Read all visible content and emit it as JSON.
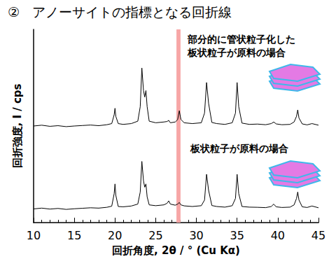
{
  "chart_data": {
    "type": "line",
    "title": "②   アノーサイトの指標となる回折線",
    "x_label": "回折角度, 2θ / ° (Cu Kα)",
    "y_label": "回折強度, I / cps",
    "xlim": [
      10,
      45
    ],
    "xticks": [
      10,
      15,
      20,
      25,
      30,
      35,
      40,
      45
    ],
    "ylim": [
      0,
      120
    ],
    "tick_labels": "x",
    "grid": false,
    "highlight": {
      "x": [
        27.55,
        28.05
      ],
      "color": "#f7a6a6"
    },
    "x": [
      10,
      11,
      12,
      13,
      14,
      15,
      16,
      17,
      18,
      19,
      19.6,
      19.9,
      20.0,
      20.1,
      20.4,
      21,
      22,
      22.8,
      23.1,
      23.3,
      23.5,
      23.65,
      23.8,
      23.95,
      24.2,
      25,
      26,
      26.4,
      26.6,
      26.8,
      27.4,
      27.7,
      27.9,
      28.1,
      28.5,
      29.5,
      30.6,
      31.0,
      31.25,
      31.5,
      31.9,
      32.5,
      33.5,
      34.4,
      34.8,
      35.0,
      35.2,
      35.6,
      36.5,
      37.5,
      38.5,
      39.2,
      39.5,
      39.8,
      40.5,
      41.5,
      42.0,
      42.3,
      42.45,
      42.6,
      43.0,
      43.6,
      44.2,
      45
    ],
    "series": [
      {
        "name": "部分的に管状粒子化した\n板状粒子が原料の場合",
        "color": "#000000",
        "values": [
          60,
          60.5,
          59.8,
          60.2,
          59.6,
          60,
          60.3,
          60.6,
          60.2,
          60.8,
          61.5,
          67,
          71,
          66,
          61.5,
          61,
          61.5,
          63,
          72,
          96,
          82,
          78,
          82,
          72,
          63,
          62,
          62.5,
          62.8,
          63.5,
          62,
          62.5,
          64,
          69.5,
          64,
          62,
          61.5,
          62,
          68,
          87,
          74,
          62.2,
          61.5,
          61,
          62,
          68,
          87,
          72,
          61.8,
          61,
          61.2,
          60.8,
          61.5,
          62.5,
          61.3,
          60.8,
          61,
          62.5,
          66,
          70,
          65,
          61.3,
          60.7,
          61.5,
          60.5
        ]
      },
      {
        "name": "板状粒子が原料の場合",
        "color": "#000000",
        "values": [
          8.5,
          9.0,
          8.4,
          8.8,
          8.2,
          8.6,
          8.9,
          9.2,
          9.0,
          9.5,
          10.2,
          18,
          24,
          17,
          10,
          9.8,
          10.3,
          11.5,
          19,
          38,
          26,
          22,
          24,
          16,
          11,
          10.5,
          11,
          12,
          13.5,
          11.5,
          10.8,
          11.5,
          12.5,
          11,
          10.4,
          10,
          10.5,
          14,
          30,
          20,
          10.6,
          10,
          9.6,
          10.5,
          15,
          30,
          18,
          10,
          9.6,
          9.5,
          9.3,
          10,
          11.5,
          9.8,
          9.4,
          9.6,
          11,
          15,
          19,
          14,
          9.8,
          9.4,
          10.3,
          9.2
        ]
      }
    ]
  }
}
